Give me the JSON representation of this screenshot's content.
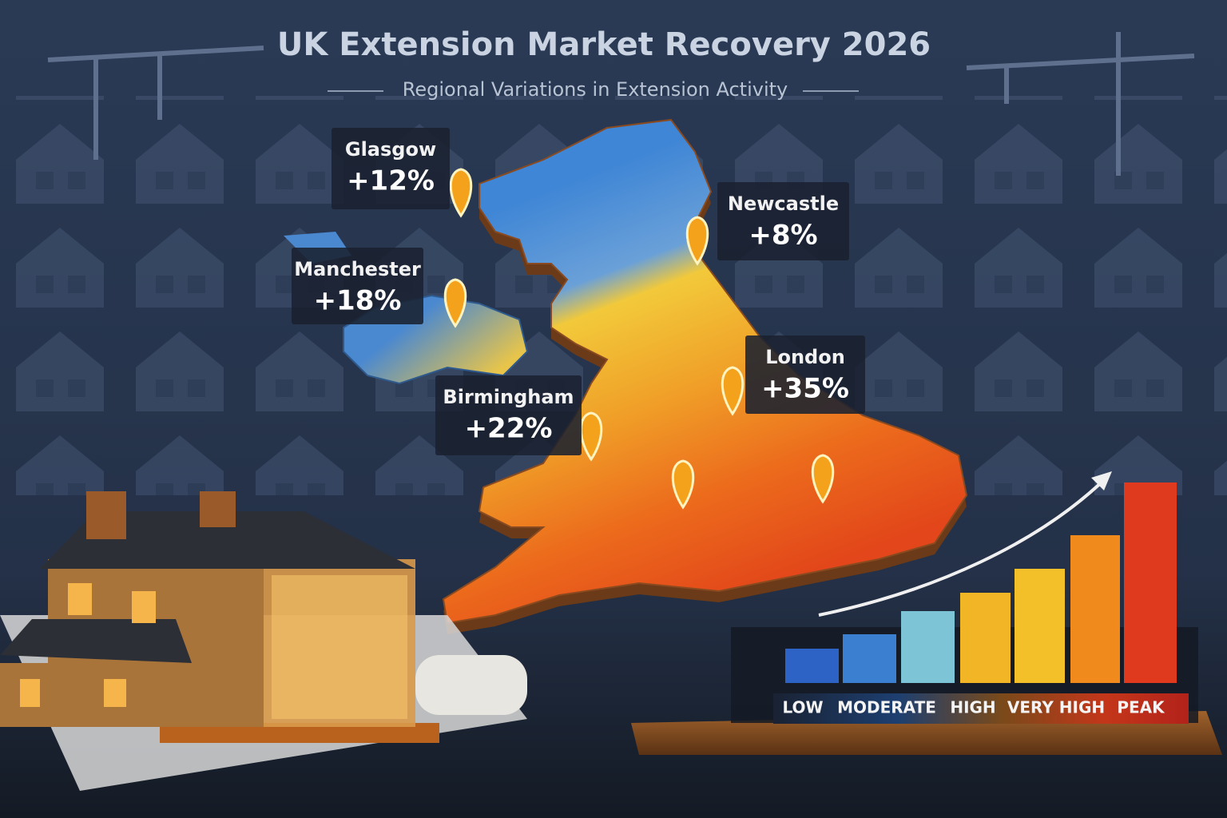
{
  "header": {
    "title": "UK Extension Market Recovery 2026",
    "subtitle": "Regional Variations in Extension Activity"
  },
  "cities": [
    {
      "name": "Glasgow",
      "change": "+12%"
    },
    {
      "name": "Manchester",
      "change": "+18%"
    },
    {
      "name": "Newcastle",
      "change": "+8%"
    },
    {
      "name": "London",
      "change": "+35%"
    },
    {
      "name": "Birmingham",
      "change": "+22%"
    }
  ],
  "legend": {
    "levels": [
      "LOW",
      "MODERATE",
      "HIGH",
      "VERY HIGH",
      "PEAK"
    ]
  }
}
